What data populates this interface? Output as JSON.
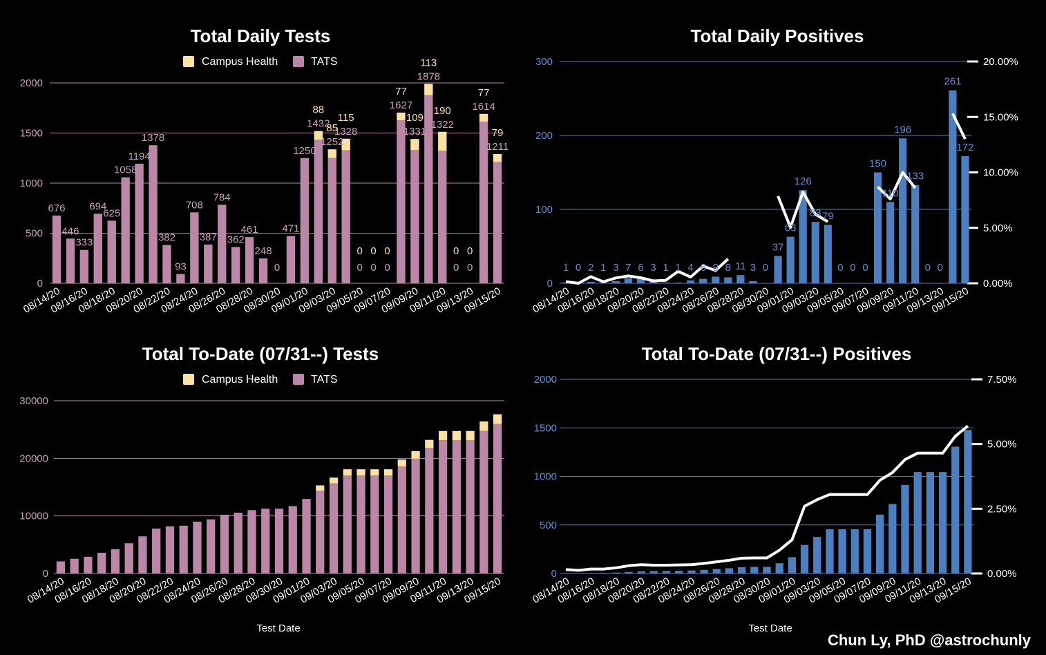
{
  "credit": "Chun Ly, PhD @astrochunly",
  "colors": {
    "campus": "#fbe39f",
    "tats": "#bb86a8",
    "tests_grid": "#b889a7",
    "positives": "#4a7fc2",
    "pos_grid": "#4a7fc2",
    "rate_line": "#ffffff",
    "tats_label": "#c9a0bd",
    "campus_label": "#fbe39f",
    "pos_label": "#5b8fd4"
  },
  "chart_data": [
    {
      "id": "daily_tests",
      "type": "bar",
      "stacked": true,
      "title": "Total Daily Tests",
      "xlabel": "",
      "ylabel": "",
      "ylim": [
        0,
        2000
      ],
      "yticks": [
        "0",
        "500",
        "1000",
        "1500",
        "2000"
      ],
      "legend": [
        "Campus Health",
        "TATS"
      ],
      "legend_position": "top",
      "grid": true,
      "categories": [
        "08/14/20",
        "08/15/20",
        "08/16/20",
        "08/17/20",
        "08/18/20",
        "08/19/20",
        "08/20/20",
        "08/21/20",
        "08/22/20",
        "08/23/20",
        "08/24/20",
        "08/25/20",
        "08/26/20",
        "08/27/20",
        "08/28/20",
        "08/29/20",
        "08/30/20",
        "08/31/20",
        "09/01/20",
        "09/02/20",
        "09/03/20",
        "09/04/20",
        "09/05/20",
        "09/06/20",
        "09/07/20",
        "09/08/20",
        "09/09/20",
        "09/10/20",
        "09/11/20",
        "09/12/20",
        "09/13/20",
        "09/14/20",
        "09/15/20"
      ],
      "xtick_labels": [
        "08/14/20",
        "08/16/20",
        "08/18/20",
        "08/20/20",
        "08/22/20",
        "08/24/20",
        "08/26/20",
        "08/28/20",
        "08/30/20",
        "09/01/20",
        "09/03/20",
        "09/05/20",
        "09/07/20",
        "09/09/20",
        "09/11/20",
        "09/13/20",
        "09/15/20"
      ],
      "series": [
        {
          "name": "TATS",
          "values": [
            676,
            446,
            333,
            694,
            625,
            1058,
            1194,
            1378,
            382,
            93,
            708,
            387,
            784,
            362,
            461,
            248,
            0,
            471,
            1250,
            1432,
            1252,
            1328,
            0,
            0,
            0,
            1627,
            1331,
            1878,
            1322,
            0,
            0,
            1614,
            1211
          ]
        },
        {
          "name": "Campus Health",
          "values": [
            0,
            0,
            0,
            0,
            0,
            0,
            0,
            0,
            0,
            0,
            0,
            0,
            0,
            0,
            0,
            0,
            0,
            0,
            0,
            88,
            85,
            115,
            0,
            0,
            0,
            77,
            109,
            113,
            190,
            0,
            0,
            77,
            79
          ]
        }
      ]
    },
    {
      "id": "daily_positives",
      "type": "bar",
      "title": "Total Daily Positives",
      "xlabel": "",
      "ylabel": "",
      "ylim": [
        0,
        300
      ],
      "yticks": [
        "0",
        "100",
        "200",
        "300"
      ],
      "y2lim": [
        0,
        20
      ],
      "y2ticks": [
        "0.00%",
        "5.00%",
        "10.00%",
        "15.00%",
        "20.00%"
      ],
      "grid": true,
      "categories": [
        "08/14/20",
        "08/15/20",
        "08/16/20",
        "08/17/20",
        "08/18/20",
        "08/19/20",
        "08/20/20",
        "08/21/20",
        "08/22/20",
        "08/23/20",
        "08/24/20",
        "08/25/20",
        "08/26/20",
        "08/27/20",
        "08/28/20",
        "08/29/20",
        "08/30/20",
        "08/31/20",
        "09/01/20",
        "09/02/20",
        "09/03/20",
        "09/04/20",
        "09/05/20",
        "09/06/20",
        "09/07/20",
        "09/08/20",
        "09/09/20",
        "09/10/20",
        "09/11/20",
        "09/12/20",
        "09/13/20",
        "09/14/20",
        "09/15/20"
      ],
      "xtick_labels": [
        "08/14/20",
        "08/16/20",
        "08/18/20",
        "08/20/20",
        "08/22/20",
        "08/24/20",
        "08/26/20",
        "08/28/20",
        "08/30/20",
        "09/01/20",
        "09/03/20",
        "09/05/20",
        "09/07/20",
        "09/09/20",
        "09/11/20",
        "09/13/20",
        "09/15/20"
      ],
      "values": [
        1,
        0,
        2,
        1,
        3,
        7,
        6,
        3,
        1,
        1,
        4,
        6,
        9,
        8,
        11,
        3,
        0,
        37,
        63,
        126,
        83,
        79,
        0,
        0,
        0,
        150,
        110,
        196,
        133,
        0,
        0,
        261,
        172
      ],
      "rate_percent": [
        0.15,
        0.0,
        0.6,
        0.14,
        0.48,
        0.66,
        0.5,
        0.22,
        0.26,
        1.08,
        0.56,
        1.55,
        1.15,
        2.2,
        null,
        1.44,
        null,
        7.86,
        5.04,
        8.23,
        6.23,
        5.55,
        null,
        null,
        null,
        8.7,
        7.6,
        10.0,
        8.6,
        null,
        null,
        15.3,
        13.0
      ]
    },
    {
      "id": "todate_tests",
      "type": "bar",
      "stacked": true,
      "title": "Total To-Date (07/31--) Tests",
      "xlabel": "Test Date",
      "ylabel": "",
      "ylim": [
        0,
        30000
      ],
      "yticks": [
        "0",
        "10000",
        "20000",
        "30000"
      ],
      "legend": [
        "Campus Health",
        "TATS"
      ],
      "legend_position": "top",
      "grid": true,
      "categories": [
        "08/14/20",
        "08/15/20",
        "08/16/20",
        "08/17/20",
        "08/18/20",
        "08/19/20",
        "08/20/20",
        "08/21/20",
        "08/22/20",
        "08/23/20",
        "08/24/20",
        "08/25/20",
        "08/26/20",
        "08/27/20",
        "08/28/20",
        "08/29/20",
        "08/30/20",
        "08/31/20",
        "09/01/20",
        "09/02/20",
        "09/03/20",
        "09/04/20",
        "09/05/20",
        "09/06/20",
        "09/07/20",
        "09/08/20",
        "09/09/20",
        "09/10/20",
        "09/11/20",
        "09/12/20",
        "09/13/20",
        "09/14/20",
        "09/15/20"
      ],
      "xtick_labels": [
        "08/14/20",
        "08/16/20",
        "08/18/20",
        "08/20/20",
        "08/22/20",
        "08/24/20",
        "08/26/20",
        "08/28/20",
        "08/30/20",
        "09/01/20",
        "09/03/20",
        "09/05/20",
        "09/07/20",
        "09/09/20",
        "09/11/20",
        "09/13/20",
        "09/15/20"
      ],
      "series": [
        {
          "name": "TATS",
          "values": [
            2100,
            2550,
            2900,
            3600,
            4200,
            5250,
            6450,
            7800,
            8200,
            8300,
            9000,
            9400,
            10200,
            10550,
            11000,
            11250,
            11250,
            11700,
            12950,
            14400,
            15650,
            17000,
            17000,
            17000,
            17000,
            18600,
            19950,
            21800,
            23150,
            23150,
            23150,
            24750,
            25950
          ]
        },
        {
          "name": "Campus Health",
          "values": [
            0,
            0,
            0,
            0,
            0,
            0,
            0,
            0,
            0,
            0,
            0,
            0,
            0,
            0,
            0,
            0,
            0,
            0,
            0,
            900,
            1000,
            1100,
            1100,
            1100,
            1100,
            1200,
            1300,
            1400,
            1600,
            1600,
            1600,
            1650,
            1700
          ]
        }
      ]
    },
    {
      "id": "todate_positives",
      "type": "bar",
      "title": "Total To-Date (07/31--) Positives",
      "xlabel": "Test Date",
      "ylabel": "",
      "ylim": [
        0,
        2000
      ],
      "yticks": [
        "0",
        "500",
        "1000",
        "1500",
        "2000"
      ],
      "y2lim": [
        0,
        7.5
      ],
      "y2ticks": [
        "0.00%",
        "2.50%",
        "5.00%",
        "7.50%"
      ],
      "grid": true,
      "categories": [
        "08/14/20",
        "08/15/20",
        "08/16/20",
        "08/17/20",
        "08/18/20",
        "08/19/20",
        "08/20/20",
        "08/21/20",
        "08/22/20",
        "08/23/20",
        "08/24/20",
        "08/25/20",
        "08/26/20",
        "08/27/20",
        "08/28/20",
        "08/29/20",
        "08/30/20",
        "08/31/20",
        "09/01/20",
        "09/02/20",
        "09/03/20",
        "09/04/20",
        "09/05/20",
        "09/06/20",
        "09/07/20",
        "09/08/20",
        "09/09/20",
        "09/10/20",
        "09/11/20",
        "09/12/20",
        "09/13/20",
        "09/14/20",
        "09/15/20"
      ],
      "xtick_labels": [
        "08/14/20",
        "08/16/20",
        "08/18/20",
        "08/20/20",
        "08/22/20",
        "08/24/20",
        "08/26/20",
        "08/28/20",
        "08/30/20",
        "09/01/20",
        "09/03/20",
        "09/05/20",
        "09/07/20",
        "09/09/20",
        "09/11/20",
        "09/13/20",
        "09/15/20"
      ],
      "values": [
        3,
        3,
        5,
        6,
        9,
        16,
        22,
        25,
        26,
        27,
        31,
        37,
        46,
        54,
        65,
        68,
        68,
        105,
        168,
        294,
        377,
        456,
        456,
        456,
        456,
        606,
        716,
        912,
        1045,
        1045,
        1045,
        1306,
        1478
      ],
      "rate_percent": [
        0.15,
        0.12,
        0.17,
        0.17,
        0.22,
        0.3,
        0.34,
        0.32,
        0.32,
        0.33,
        0.34,
        0.39,
        0.45,
        0.51,
        0.59,
        0.6,
        0.6,
        0.9,
        1.3,
        2.6,
        2.85,
        3.05,
        3.05,
        3.05,
        3.05,
        3.6,
        3.9,
        4.4,
        4.65,
        4.65,
        4.65,
        5.3,
        5.7
      ]
    }
  ]
}
